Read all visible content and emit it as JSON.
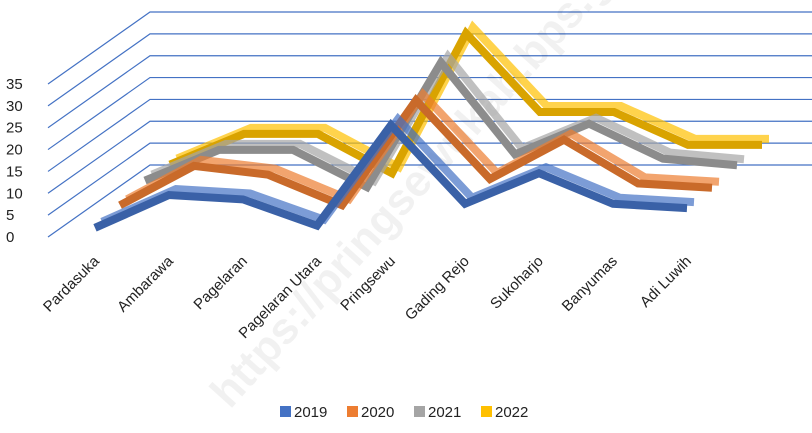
{
  "chart_data": {
    "type": "line3d",
    "categories": [
      "Pardasuka",
      "Ambarawa",
      "Pagelaran",
      "Pagelaran Utara",
      "Pringsewu",
      "Gading Rejo",
      "Sukoharjo",
      "Banyumas",
      "Adi Luwih"
    ],
    "series": [
      {
        "name": "2019",
        "color": "#4472c4",
        "values": [
          0.5,
          8,
          7,
          1,
          24,
          6,
          13,
          6,
          5
        ]
      },
      {
        "name": "2020",
        "color": "#ed7d31",
        "values": [
          2,
          11,
          9,
          2,
          26,
          8,
          17,
          7,
          6
        ]
      },
      {
        "name": "2021",
        "color": "#a5a5a5",
        "values": [
          4,
          11,
          11,
          2.5,
          31,
          10,
          17,
          9,
          7.5
        ]
      },
      {
        "name": "2022",
        "color": "#ffc000",
        "values": [
          4,
          11,
          11,
          2,
          34,
          16,
          16,
          8.5,
          8.5
        ]
      }
    ],
    "ylim": [
      0,
      35
    ],
    "yticks": [
      0,
      5,
      10,
      15,
      20,
      25,
      30,
      35
    ],
    "grid": true,
    "watermark": "https://pringsewukab.bps.go.id"
  }
}
